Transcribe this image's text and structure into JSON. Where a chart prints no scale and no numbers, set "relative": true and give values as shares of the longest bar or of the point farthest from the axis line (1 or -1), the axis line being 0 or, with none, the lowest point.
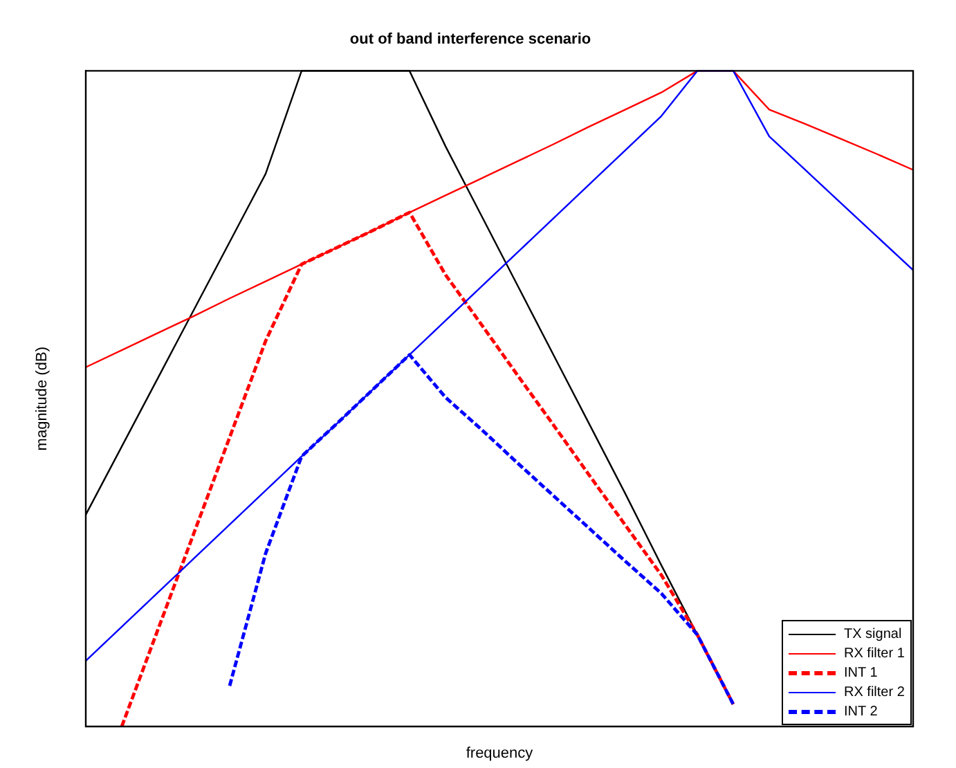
{
  "chart_data": {
    "type": "line",
    "title": "out of band interference scenario",
    "xlabel": "frequency",
    "ylabel": "magnitude (dB)",
    "relative": true,
    "legend": "bottom right",
    "marker": "none",
    "grid": false,
    "categories": [
      null,
      null,
      null,
      null,
      null,
      null,
      null,
      null,
      null,
      null,
      null,
      null,
      null,
      null,
      null,
      null,
      null,
      null,
      null,
      null,
      null,
      null,
      null,
      null
    ],
    "series": [
      {
        "name": "TX signal",
        "color": "#000000",
        "line_style": "solid",
        "values": [
          0.323,
          0.427,
          0.531,
          0.635,
          0.739,
          0.843,
          1,
          1,
          1,
          1,
          0.885,
          0.779,
          0.673,
          0.567,
          0.461,
          0.355,
          0.246,
          0.14,
          0.034,
          null,
          null,
          null,
          null,
          null
        ]
      },
      {
        "name": "RX filter 1",
        "color": "#ff0000",
        "line_style": "solid",
        "values": [
          0.548,
          0.574,
          0.6,
          0.626,
          0.653,
          0.679,
          0.705,
          0.731,
          0.757,
          0.784,
          0.81,
          0.836,
          0.862,
          0.888,
          0.915,
          0.941,
          0.967,
          1,
          1,
          0.941,
          0.919,
          0.896,
          0.873,
          0.849
        ]
      },
      {
        "name": "INT 1",
        "color": "#ff0000",
        "line_style": "dashed",
        "values": [
          null,
          0,
          0.147,
          0.294,
          0.441,
          0.588,
          0.705,
          0.731,
          0.757,
          0.784,
          0.689,
          0.613,
          0.536,
          0.46,
          0.383,
          0.307,
          0.231,
          0.14,
          0.034,
          null,
          null,
          null,
          null,
          null
        ]
      },
      {
        "name": "RX filter 2",
        "color": "#0000ff",
        "line_style": "solid",
        "values": [
          0.1,
          0.152,
          0.204,
          0.256,
          0.308,
          0.36,
          0.412,
          0.463,
          0.515,
          0.567,
          0.619,
          0.671,
          0.723,
          0.775,
          0.827,
          0.879,
          0.931,
          1,
          1,
          0.9,
          0.849,
          0.798,
          0.747,
          0.696
        ]
      },
      {
        "name": "INT 2",
        "color": "#0000ff",
        "line_style": "dashed",
        "values": [
          null,
          null,
          null,
          null,
          0.062,
          0.264,
          0.412,
          0.463,
          0.515,
          0.567,
          0.502,
          0.453,
          0.402,
          0.352,
          0.302,
          0.252,
          0.203,
          0.14,
          0.034,
          null,
          null,
          null,
          null,
          null
        ]
      }
    ]
  }
}
